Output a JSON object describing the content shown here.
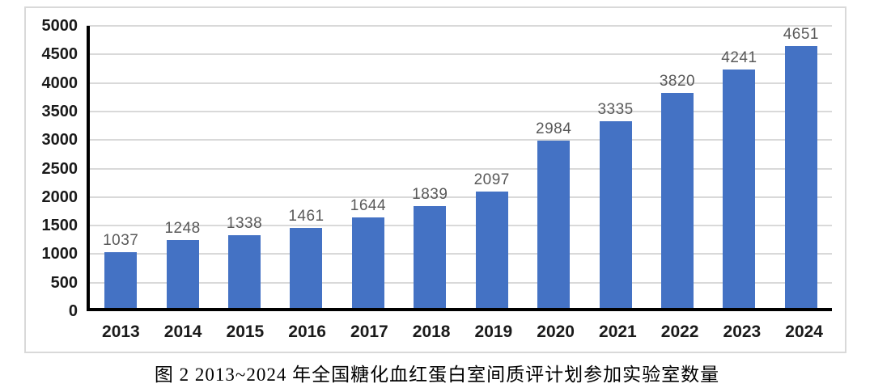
{
  "chart_data": {
    "type": "bar",
    "categories": [
      "2013",
      "2014",
      "2015",
      "2016",
      "2017",
      "2018",
      "2019",
      "2020",
      "2021",
      "2022",
      "2023",
      "2024"
    ],
    "values": [
      1037,
      1248,
      1338,
      1461,
      1644,
      1839,
      2097,
      2984,
      3335,
      3820,
      4241,
      4651
    ],
    "title": "",
    "xlabel": "",
    "ylabel": "",
    "ylim": [
      0,
      5000
    ],
    "ytick_step": 500,
    "yticks": [
      0,
      500,
      1000,
      1500,
      2000,
      2500,
      3000,
      3500,
      4000,
      4500,
      5000
    ],
    "grid": true,
    "legend": false,
    "data_labels": true,
    "colors": {
      "bar": "#4472C4",
      "gridline": "#D9D9D9",
      "data_label": "#595959",
      "axis_text": "#1a1a1a",
      "axis_line": "#000000",
      "frame_border": "#D9D9D9"
    }
  },
  "caption": "图 2  2013~2024 年全国糖化血红蛋白室间质评计划参加实验室数量"
}
